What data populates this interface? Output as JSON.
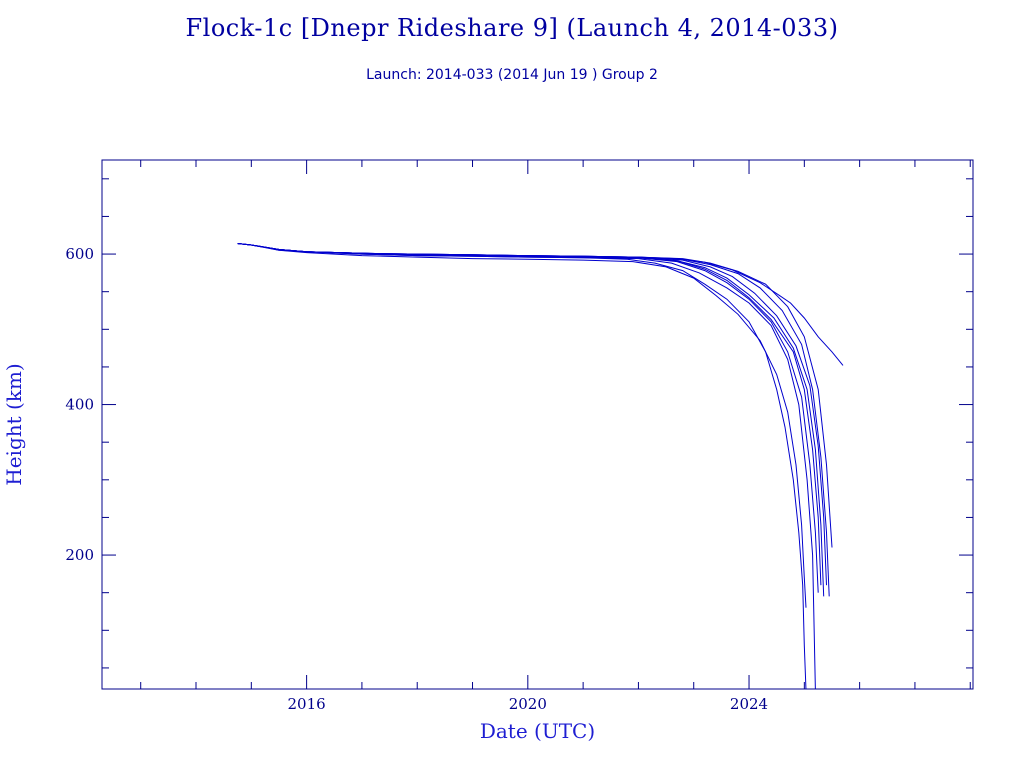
{
  "title": "Flock-1c [Dnepr Rideshare 9] (Launch 4, 2014-033)",
  "subtitle": "Launch: 2014-033  (2014 Jun 19 )  Group 2",
  "colors": {
    "frame": "#00008b",
    "line": "#0000cd",
    "text": "#0000a0"
  },
  "chart_data": {
    "type": "line",
    "title": "Flock-1c [Dnepr Rideshare 9] (Launch 4, 2014-033)",
    "subtitle": "Launch: 2014-033  (2014 Jun 19 )  Group 2",
    "xlabel": "Date (UTC)",
    "ylabel": "Height (km)",
    "xlim": [
      2012.3,
      2028.05
    ],
    "ylim": [
      22,
      725
    ],
    "x_ticks": [
      2016,
      2020,
      2024
    ],
    "x_tick_labels": [
      "2016",
      "2020",
      "2024"
    ],
    "y_ticks": [
      200,
      400,
      600
    ],
    "y_tick_labels": [
      "200",
      "400",
      "600"
    ],
    "grid": false,
    "series": [
      {
        "x": [
          2014.75,
          2015.0,
          2015.25,
          2015.5,
          2016.0,
          2017.0,
          2018.0,
          2019.0,
          2020.0,
          2021.0,
          2021.8,
          2022.3,
          2022.8,
          2023.2,
          2023.6,
          2024.0,
          2024.3,
          2024.5,
          2024.65,
          2024.8,
          2024.9,
          2024.97,
          2025.0,
          2025.03
        ],
        "y": [
          614,
          612,
          609,
          605,
          603,
          600,
          598,
          597,
          596,
          595,
          593,
          588,
          578,
          560,
          540,
          510,
          470,
          420,
          370,
          300,
          230,
          160,
          80,
          20
        ]
      },
      {
        "x": [
          2014.75,
          2015.0,
          2015.5,
          2016.0,
          2017.0,
          2018.0,
          2019.0,
          2020.0,
          2021.0,
          2021.9,
          2022.5,
          2023.0,
          2023.4,
          2023.8,
          2024.2,
          2024.5,
          2024.7,
          2024.85,
          2024.95,
          2025.0,
          2025.03
        ],
        "y": [
          614,
          612,
          605,
          602,
          598,
          596,
          594,
          593,
          592,
          590,
          583,
          568,
          545,
          520,
          485,
          440,
          390,
          320,
          240,
          170,
          130
        ]
      },
      {
        "x": [
          2014.75,
          2015.0,
          2015.5,
          2016.0,
          2017.0,
          2018.0,
          2019.0,
          2020.0,
          2021.0,
          2022.0,
          2022.6,
          2023.1,
          2023.6,
          2024.0,
          2024.4,
          2024.7,
          2024.9,
          2025.05,
          2025.15,
          2025.2
        ],
        "y": [
          614,
          612,
          606,
          603,
          600,
          598,
          597,
          596,
          595,
          594,
          588,
          575,
          555,
          535,
          505,
          460,
          400,
          300,
          200,
          20
        ]
      },
      {
        "x": [
          2014.75,
          2015.0,
          2015.5,
          2016.0,
          2017.0,
          2018.0,
          2019.0,
          2020.0,
          2021.0,
          2022.0,
          2022.7,
          2023.2,
          2023.6,
          2024.0,
          2024.4,
          2024.7,
          2024.95,
          2025.1,
          2025.2,
          2025.25
        ],
        "y": [
          614,
          612,
          606,
          603,
          601,
          599,
          598,
          597,
          596,
          595,
          590,
          578,
          562,
          540,
          510,
          470,
          410,
          320,
          230,
          150
        ]
      },
      {
        "x": [
          2014.75,
          2015.0,
          2015.5,
          2016.0,
          2017.0,
          2018.0,
          2019.0,
          2020.0,
          2021.0,
          2022.0,
          2022.7,
          2023.2,
          2023.6,
          2024.0,
          2024.4,
          2024.8,
          2025.0,
          2025.15,
          2025.25,
          2025.3
        ],
        "y": [
          614,
          612,
          606,
          603,
          601,
          599,
          598,
          597,
          596,
          595,
          591,
          580,
          565,
          542,
          513,
          470,
          420,
          340,
          250,
          160
        ]
      },
      {
        "x": [
          2014.75,
          2015.0,
          2015.5,
          2016.0,
          2017.0,
          2018.0,
          2019.0,
          2020.0,
          2021.0,
          2022.0,
          2022.7,
          2023.2,
          2023.6,
          2024.0,
          2024.45,
          2024.8,
          2025.05,
          2025.2,
          2025.3,
          2025.35
        ],
        "y": [
          614,
          612,
          606,
          603,
          601,
          599,
          598,
          597,
          596,
          595,
          591,
          582,
          568,
          546,
          515,
          475,
          420,
          340,
          240,
          145
        ]
      },
      {
        "x": [
          2014.75,
          2015.0,
          2015.5,
          2016.0,
          2017.0,
          2018.0,
          2019.0,
          2020.0,
          2021.0,
          2022.0,
          2022.8,
          2023.3,
          2023.7,
          2024.1,
          2024.5,
          2024.85,
          2025.1,
          2025.25,
          2025.35,
          2025.4
        ],
        "y": [
          614,
          612,
          606,
          603,
          601,
          600,
          599,
          598,
          597,
          596,
          592,
          583,
          570,
          548,
          518,
          478,
          425,
          345,
          250,
          160
        ]
      },
      {
        "x": [
          2014.75,
          2015.0,
          2015.5,
          2016.0,
          2017.0,
          2018.0,
          2019.0,
          2020.0,
          2021.0,
          2022.0,
          2022.8,
          2023.3,
          2023.8,
          2024.2,
          2024.6,
          2024.95,
          2025.15,
          2025.3,
          2025.4,
          2025.45
        ],
        "y": [
          614,
          612,
          606,
          603,
          601,
          600,
          599,
          598,
          597,
          596,
          593,
          586,
          574,
          555,
          525,
          480,
          420,
          330,
          230,
          145
        ]
      },
      {
        "x": [
          2014.75,
          2015.0,
          2015.5,
          2016.0,
          2017.0,
          2018.0,
          2019.0,
          2020.0,
          2021.0,
          2022.0,
          2022.8,
          2023.3,
          2023.8,
          2024.3,
          2024.7,
          2025.0,
          2025.25,
          2025.4,
          2025.5
        ],
        "y": [
          614,
          612,
          606,
          603,
          601,
          600,
          599,
          598,
          597,
          596,
          594,
          588,
          577,
          560,
          530,
          490,
          420,
          320,
          210
        ]
      },
      {
        "x": [
          2014.75,
          2015.0,
          2015.5,
          2016.0,
          2017.0,
          2018.0,
          2019.0,
          2020.0,
          2021.0,
          2022.0,
          2022.7,
          2023.2,
          2023.7,
          2024.2,
          2024.55,
          2024.75,
          2025.0,
          2025.25,
          2025.5,
          2025.7
        ],
        "y": [
          614,
          612,
          606,
          603,
          601,
          600,
          599,
          598,
          597,
          596,
          594,
          589,
          579,
          562,
          545,
          535,
          515,
          490,
          470,
          452
        ]
      }
    ]
  }
}
